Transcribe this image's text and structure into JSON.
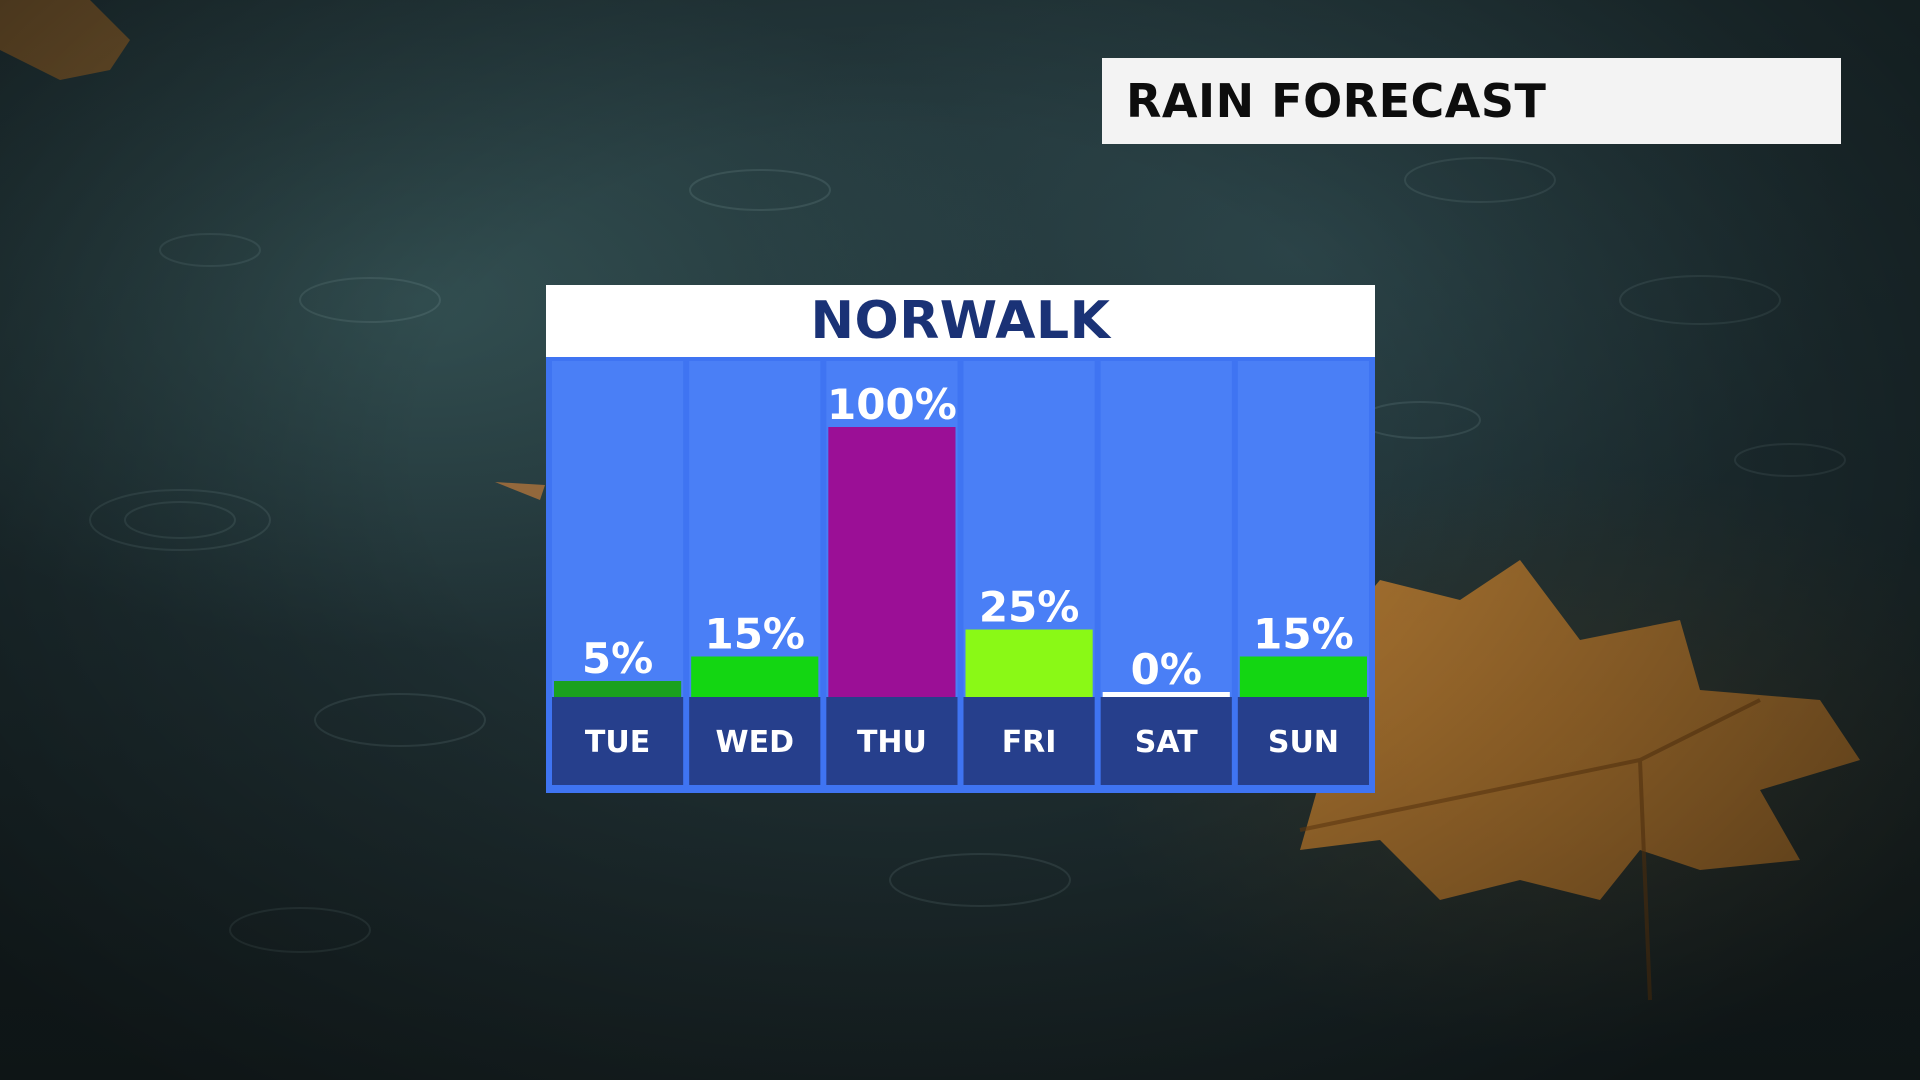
{
  "header": {
    "title": "RAIN FORECAST"
  },
  "panel": {
    "city": "NORWALK"
  },
  "colors": {
    "column_bg": "#4a7ff6",
    "day_band": "#263f8c",
    "border": "#3f74f2",
    "title_bg": "#f3f3f3",
    "city_text": "#1a3276",
    "bar_colors": [
      "#1aa11f",
      "#13d612",
      "#9b0f96",
      "#8af916",
      "#ffffff",
      "#13d612"
    ]
  },
  "chart_data": {
    "type": "bar",
    "title": "",
    "categories": [
      "TUE",
      "WED",
      "THU",
      "FRI",
      "SAT",
      "SUN"
    ],
    "values": [
      5,
      15,
      100,
      25,
      0,
      15
    ],
    "value_labels": [
      "5%",
      "15%",
      "100%",
      "25%",
      "0%",
      "15%"
    ],
    "ylim": [
      0,
      100
    ],
    "grid": false,
    "legend": "none",
    "unit": "%"
  }
}
